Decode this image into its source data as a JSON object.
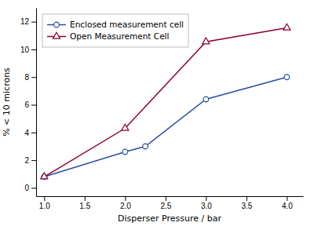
{
  "chart_data": {
    "type": "line",
    "xlabel": "Disperser Pressure / bar",
    "ylabel": "% < 10 microns",
    "xlim": [
      0.9,
      4.2
    ],
    "ylim": [
      -0.6,
      13.0
    ],
    "xticks": [
      {
        "value": 1.0,
        "label": "1.0"
      },
      1.5,
      {
        "value": 2.0,
        "label": "2.0"
      },
      2.5,
      {
        "value": 3.0,
        "label": "3.0"
      },
      3.5,
      {
        "value": 4.0,
        "label": "4.0"
      }
    ],
    "yticks": [
      0,
      2,
      4,
      6,
      8,
      10,
      12
    ],
    "legend": "upper left",
    "series": [
      {
        "name": "Enclosed measurement cell",
        "color": "#2b4f9e",
        "marker": "circle",
        "x": [
          1.0,
          2.0,
          2.25,
          3.0,
          4.0
        ],
        "values": [
          0.8,
          2.6,
          3.0,
          6.4,
          8.0
        ]
      },
      {
        "name": "Open Measurement Cell",
        "color": "#8b0030",
        "marker": "triangle",
        "x": [
          1.0,
          2.0,
          3.0,
          4.0
        ],
        "values": [
          0.8,
          4.3,
          10.55,
          11.55
        ]
      }
    ]
  }
}
